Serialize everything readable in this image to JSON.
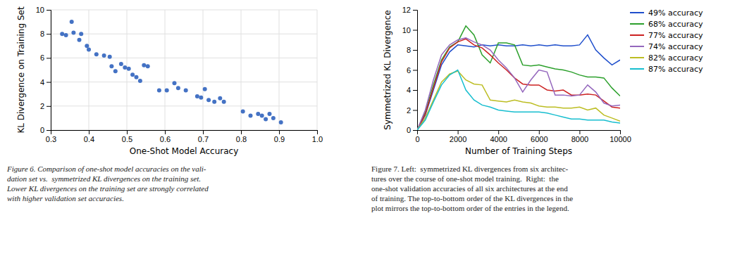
{
  "chart_data": [
    {
      "type": "scatter",
      "xlabel": "One-Shot Model Accuracy",
      "ylabel": "KL Divergence on Training Set",
      "x": [
        0.33,
        0.34,
        0.355,
        0.36,
        0.375,
        0.38,
        0.395,
        0.4,
        0.42,
        0.44,
        0.455,
        0.46,
        0.47,
        0.485,
        0.495,
        0.505,
        0.515,
        0.525,
        0.535,
        0.545,
        0.555,
        0.585,
        0.605,
        0.625,
        0.635,
        0.655,
        0.685,
        0.695,
        0.705,
        0.715,
        0.73,
        0.745,
        0.755,
        0.805,
        0.825,
        0.845,
        0.855,
        0.865,
        0.875,
        0.885,
        0.905
      ],
      "values": [
        8.0,
        7.9,
        9.0,
        8.1,
        7.5,
        8.0,
        7.0,
        6.7,
        6.3,
        6.2,
        6.1,
        5.3,
        4.9,
        5.5,
        5.2,
        5.1,
        4.6,
        4.4,
        4.1,
        5.4,
        5.3,
        3.3,
        3.3,
        3.9,
        3.5,
        3.3,
        2.8,
        2.7,
        3.4,
        2.5,
        2.35,
        2.65,
        2.35,
        1.55,
        1.2,
        1.35,
        1.2,
        0.9,
        1.35,
        1.0,
        0.65
      ],
      "color": "#4472c4",
      "xlim": [
        0.3,
        1.0
      ],
      "ylim": [
        0,
        10
      ],
      "xticks": [
        0.3,
        0.4,
        0.5,
        0.6,
        0.7,
        0.8,
        0.9,
        {
          "value": 1.0,
          "label": "1.0"
        }
      ],
      "yticks": [
        0,
        2,
        4,
        6,
        8,
        10
      ],
      "grid": true,
      "annotations": [
        "Figure 6. Comparison of one-shot model accuracies on the vali-",
        "dation set vs.  symmetrized KL divergences on the training set.",
        "Lower KL divergences on the training set are strongly correlated",
        "with higher validation set accuracies."
      ]
    },
    {
      "type": "line",
      "xlabel": "Number of Training Steps",
      "ylabel": "Symmetrized KL Divergence",
      "x": [
        0,
        400,
        800,
        1200,
        1600,
        2000,
        2400,
        2800,
        3200,
        3600,
        4000,
        4400,
        4800,
        5200,
        5600,
        6000,
        6400,
        6800,
        7200,
        7600,
        8000,
        8400,
        8800,
        9200,
        9600,
        10000
      ],
      "series": [
        {
          "name": "49% accuracy",
          "color": "#1f4fcc",
          "values": [
            0.0,
            1.5,
            4.0,
            6.5,
            7.8,
            8.5,
            8.4,
            8.3,
            8.5,
            8.4,
            8.5,
            8.4,
            8.4,
            8.5,
            8.4,
            8.5,
            8.4,
            8.5,
            8.4,
            8.4,
            8.5,
            9.5,
            8.0,
            7.2,
            6.5,
            7.0
          ]
        },
        {
          "name": "68% accuracy",
          "color": "#2ca02c",
          "values": [
            0.0,
            1.8,
            4.5,
            7.0,
            8.3,
            8.8,
            10.4,
            9.5,
            7.5,
            6.7,
            8.7,
            8.7,
            8.5,
            6.5,
            6.4,
            6.5,
            6.3,
            6.1,
            6.0,
            5.8,
            5.5,
            5.3,
            5.3,
            5.2,
            4.2,
            3.4
          ]
        },
        {
          "name": "77% accuracy",
          "color": "#cc2222",
          "values": [
            0.0,
            1.6,
            4.2,
            6.8,
            8.2,
            8.8,
            9.1,
            8.5,
            8.2,
            7.5,
            6.7,
            6.0,
            5.2,
            4.6,
            4.5,
            4.5,
            4.0,
            3.9,
            4.0,
            3.5,
            3.5,
            3.6,
            3.5,
            2.9,
            2.3,
            2.2
          ]
        },
        {
          "name": "74% accuracy",
          "color": "#9467bd",
          "values": [
            0.0,
            2.0,
            5.0,
            7.5,
            8.5,
            9.0,
            9.2,
            8.8,
            8.5,
            8.0,
            7.0,
            6.2,
            5.2,
            3.8,
            5.0,
            6.0,
            5.8,
            3.5,
            3.5,
            3.4,
            3.5,
            4.5,
            3.8,
            2.7,
            2.4,
            2.5
          ]
        },
        {
          "name": "82% accuracy",
          "color": "#bcbd22",
          "values": [
            0.0,
            1.2,
            3.0,
            4.8,
            5.6,
            5.9,
            5.0,
            4.6,
            4.5,
            3.0,
            2.9,
            2.8,
            3.0,
            2.8,
            2.7,
            2.4,
            2.3,
            2.3,
            2.2,
            2.2,
            2.3,
            2.0,
            2.2,
            1.5,
            1.2,
            0.9
          ]
        },
        {
          "name": "87% accuracy",
          "color": "#17becf",
          "values": [
            0.0,
            1.0,
            2.8,
            4.5,
            5.5,
            6.0,
            4.0,
            3.0,
            2.5,
            2.3,
            2.0,
            1.9,
            1.8,
            1.8,
            1.8,
            1.8,
            1.7,
            1.5,
            1.3,
            1.1,
            1.1,
            1.0,
            1.0,
            1.0,
            0.8,
            0.7
          ]
        }
      ],
      "xlim": [
        0,
        10000
      ],
      "ylim": [
        0,
        12
      ],
      "xticks": [
        0,
        2000,
        4000,
        6000,
        8000,
        10000
      ],
      "yticks": [
        0,
        2,
        4,
        6,
        8,
        10,
        12
      ],
      "grid": false,
      "legend": "right",
      "annotations": [
        "Figure 7. Left:  symmetrized KL divergences from six architec-",
        "tures over the course of one-shot model training.  Right:  the",
        "one-shot validation accuracies of all six architectures at the end",
        "of training. The top-to-bottom order of the KL divergences in the",
        "plot mirrors the top-to-bottom order of the entries in the legend."
      ]
    }
  ]
}
